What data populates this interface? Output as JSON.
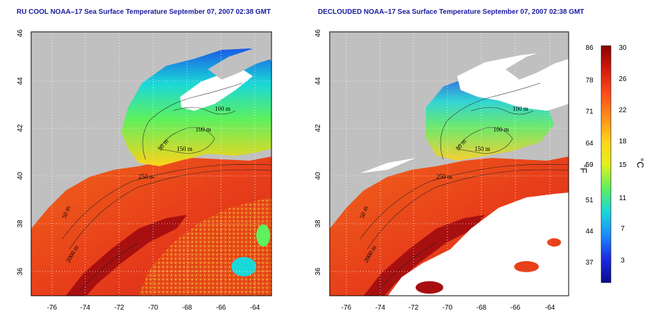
{
  "panels": [
    {
      "id": "ru-cool",
      "title": "RU COOL NOAA–17 Sea Surface Temperature September 07, 2007 02:38 GMT",
      "contour_labels": [
        "100 m",
        "100 m",
        "50 m",
        "150 m",
        "250 m",
        "50 m",
        "2000 m"
      ],
      "clouds": "flagged"
    },
    {
      "id": "declouded",
      "title": "DECLOUDED NOAA–17 Sea Surface Temperature September 07, 2007 02:38 GMT",
      "contour_labels": [
        "100 m",
        "100 m",
        "50 m",
        "150 m",
        "250 m",
        "50 m",
        "2000 m"
      ],
      "clouds": "masked-white"
    }
  ],
  "axes": {
    "lon_ticks": [
      "-76",
      "-74",
      "-72",
      "-70",
      "-68",
      "-66",
      "-64"
    ],
    "lat_ticks": [
      "46",
      "44",
      "42",
      "40",
      "38",
      "36"
    ]
  },
  "colorbar": {
    "fahrenheit_unit": "°F",
    "celsius_unit": "°C",
    "fahrenheit_ticks": [
      "86",
      "78",
      "71",
      "64",
      "59",
      "51",
      "44",
      "37"
    ],
    "celsius_ticks": [
      "30",
      "26",
      "22",
      "18",
      "15",
      "11",
      "7",
      "3"
    ],
    "gradient_colors": [
      "#8b0000",
      "#d51a0c",
      "#ff4a1a",
      "#ff8c1a",
      "#ffd21a",
      "#e6f01a",
      "#5ef05e",
      "#1ad8d8",
      "#1a8cff",
      "#1a2ae6",
      "#0a0a8c"
    ]
  },
  "colors": {
    "land": "#c0c0c0",
    "ocean_warm": "#e8401a",
    "ocean_hot": "#a01010",
    "cloud_mask": "#ffffff",
    "title": "#1a1aa0"
  }
}
